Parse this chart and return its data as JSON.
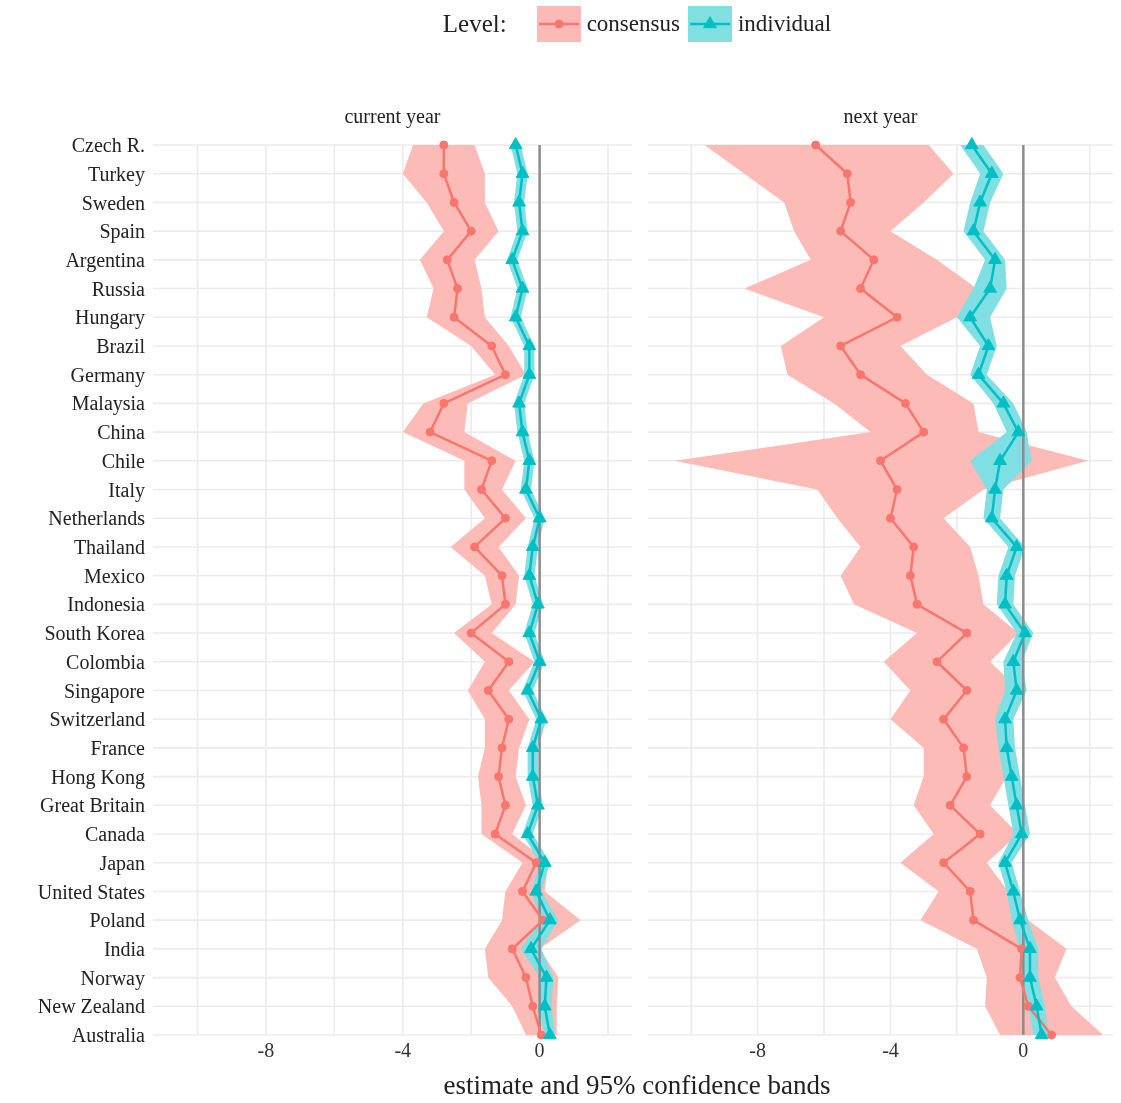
{
  "chart_data": [
    {
      "type": "line",
      "orientation": "horizontal",
      "title": "current year",
      "xlabel": "estimate and 95% confidence bands",
      "legend_title": "Level:",
      "legend": "top",
      "categories": [
        "Czech R.",
        "Turkey",
        "Sweden",
        "Spain",
        "Argentina",
        "Russia",
        "Hungary",
        "Brazil",
        "Germany",
        "Malaysia",
        "China",
        "Chile",
        "Italy",
        "Netherlands",
        "Thailand",
        "Mexico",
        "Indonesia",
        "South Korea",
        "Colombia",
        "Singapore",
        "Switzerland",
        "France",
        "Hong Kong",
        "Great Britain",
        "Canada",
        "Japan",
        "United States",
        "Poland",
        "India",
        "Norway",
        "New Zealand",
        "Australia"
      ],
      "series": [
        {
          "name": "consensus",
          "color": "#f8766d",
          "marker": "circle",
          "values": [
            -2.8,
            -2.8,
            -2.5,
            -2.0,
            -2.7,
            -2.4,
            -2.5,
            -1.4,
            -1.0,
            -2.8,
            -3.2,
            -1.4,
            -1.7,
            -1.0,
            -1.9,
            -1.1,
            -1.0,
            -2.0,
            -0.9,
            -1.5,
            -0.9,
            -1.1,
            -1.2,
            -1.0,
            -1.3,
            -0.1,
            -0.5,
            0.1,
            -0.8,
            -0.4,
            -0.2,
            0.05
          ],
          "lower": [
            -3.7,
            -4.0,
            -3.3,
            -2.8,
            -3.5,
            -3.1,
            -3.3,
            -2.0,
            -1.3,
            -3.4,
            -4.0,
            -2.2,
            -2.2,
            -1.6,
            -2.6,
            -1.6,
            -1.4,
            -2.5,
            -1.6,
            -2.1,
            -1.6,
            -1.6,
            -1.8,
            -1.7,
            -1.7,
            -0.5,
            -1.0,
            -1.1,
            -1.6,
            -1.5,
            -0.8,
            -0.4
          ],
          "upper": [
            -1.9,
            -1.6,
            -1.6,
            -1.2,
            -1.9,
            -1.7,
            -1.6,
            -0.9,
            -0.4,
            -2.1,
            -2.2,
            -0.7,
            -1.1,
            -0.4,
            -1.2,
            -0.6,
            -0.7,
            -1.4,
            -0.15,
            -0.9,
            -0.3,
            -0.6,
            -0.7,
            -0.4,
            -0.8,
            0.25,
            0.15,
            1.2,
            0,
            0.55,
            0.5,
            0.5
          ]
        },
        {
          "name": "individual",
          "color": "#00bfc4",
          "marker": "triangle",
          "values": [
            -0.7,
            -0.5,
            -0.6,
            -0.5,
            -0.8,
            -0.5,
            -0.7,
            -0.3,
            -0.3,
            -0.6,
            -0.5,
            -0.3,
            -0.4,
            0,
            -0.2,
            -0.3,
            -0.05,
            -0.3,
            0,
            -0.35,
            0.05,
            -0.2,
            -0.2,
            -0.05,
            -0.35,
            0.15,
            -0.1,
            0.3,
            -0.25,
            0.2,
            0.15,
            0.3
          ],
          "lower": [
            -0.85,
            -0.65,
            -0.75,
            -0.65,
            -0.95,
            -0.65,
            -0.85,
            -0.45,
            -0.45,
            -0.75,
            -0.65,
            -0.45,
            -0.55,
            -0.15,
            -0.35,
            -0.45,
            -0.2,
            -0.45,
            -0.15,
            -0.5,
            -0.1,
            -0.35,
            -0.35,
            -0.2,
            -0.5,
            0,
            -0.25,
            0.05,
            -0.55,
            0,
            -0.05,
            0.15
          ],
          "upper": [
            -0.55,
            -0.35,
            -0.45,
            -0.35,
            -0.65,
            -0.35,
            -0.55,
            -0.15,
            -0.15,
            -0.45,
            -0.35,
            -0.15,
            -0.25,
            0.15,
            -0.05,
            -0.15,
            0.1,
            -0.15,
            0.15,
            -0.2,
            0.2,
            -0.05,
            -0.05,
            0.1,
            -0.2,
            0.3,
            0.05,
            0.55,
            0.05,
            0.4,
            0.35,
            0.45
          ]
        }
      ],
      "xlim": [
        -11.3,
        2.7
      ],
      "xticks": [
        {
          "value": -10,
          "label": null
        },
        -8,
        {
          "value": -6,
          "label": null
        },
        -4,
        {
          "value": -2,
          "label": null
        },
        0,
        {
          "value": 2,
          "label": null
        }
      ],
      "grid": true,
      "ref_lines": [
        {
          "axis": "x",
          "value": 0,
          "color": "#8c8c8c"
        }
      ]
    },
    {
      "type": "line",
      "orientation": "horizontal",
      "title": "next year",
      "tick_labels": "x",
      "categories": [
        "Czech R.",
        "Turkey",
        "Sweden",
        "Spain",
        "Argentina",
        "Russia",
        "Hungary",
        "Brazil",
        "Germany",
        "Malaysia",
        "China",
        "Chile",
        "Italy",
        "Netherlands",
        "Thailand",
        "Mexico",
        "Indonesia",
        "South Korea",
        "Colombia",
        "Singapore",
        "Switzerland",
        "France",
        "Hong Kong",
        "Great Britain",
        "Canada",
        "Japan",
        "United States",
        "Poland",
        "India",
        "Norway",
        "New Zealand",
        "Australia"
      ],
      "series": [
        {
          "name": "consensus",
          "color": "#f8766d",
          "marker": "circle",
          "values": [
            -6.25,
            -5.3,
            -5.2,
            -5.5,
            -4.5,
            -4.9,
            -3.8,
            -5.5,
            -4.9,
            -3.55,
            -3.0,
            -4.3,
            -3.8,
            -4.0,
            -3.3,
            -3.4,
            -3.2,
            -1.7,
            -2.6,
            -1.7,
            -2.4,
            -1.8,
            -1.7,
            -2.2,
            -1.3,
            -2.4,
            -1.6,
            -1.5,
            -0.05,
            -0.1,
            0.15,
            0.85
          ],
          "lower": [
            -9.6,
            -8.4,
            -7.2,
            -6.9,
            -6.4,
            -8.4,
            -6.0,
            -7.3,
            -7.1,
            -5.7,
            -4.6,
            -10.5,
            -6.2,
            -5.6,
            -4.9,
            -5.5,
            -5.1,
            -3.2,
            -4.2,
            -3.4,
            -4.0,
            -3.0,
            -3.0,
            -3.3,
            -2.7,
            -3.7,
            -2.55,
            -3.1,
            -1.4,
            -1.1,
            -1.15,
            -0.7
          ],
          "upper": [
            -2.85,
            -2.1,
            -3.0,
            -4.0,
            -2.6,
            -1.4,
            -2.0,
            -3.7,
            -2.9,
            -1.5,
            -1.35,
            1.95,
            -1.2,
            -2.4,
            -1.6,
            -1.35,
            -1.2,
            -0.15,
            -1.0,
            -0.1,
            -0.75,
            -0.55,
            -0.5,
            -1.0,
            -0.15,
            -1.1,
            -0.45,
            0.15,
            1.3,
            0.95,
            1.45,
            2.4
          ]
        },
        {
          "name": "individual",
          "color": "#00bfc4",
          "marker": "triangle",
          "values": [
            -1.55,
            -0.95,
            -1.3,
            -1.5,
            -0.85,
            -1.0,
            -1.6,
            -1.05,
            -1.35,
            -0.6,
            -0.15,
            -0.7,
            -0.85,
            -0.95,
            -0.2,
            -0.5,
            -0.55,
            0.05,
            -0.3,
            -0.2,
            -0.55,
            -0.5,
            -0.35,
            -0.2,
            -0.05,
            -0.55,
            -0.3,
            -0.1,
            0.2,
            0.2,
            0.4,
            0.55
          ],
          "lower": [
            -1.9,
            -1.3,
            -1.6,
            -1.8,
            -1.15,
            -1.5,
            -2.0,
            -1.3,
            -1.6,
            -0.9,
            -0.5,
            -1.6,
            -1.1,
            -1.2,
            -0.45,
            -0.75,
            -0.8,
            -0.2,
            -0.6,
            -0.55,
            -0.85,
            -0.75,
            -0.6,
            -0.45,
            -0.3,
            -0.75,
            -0.5,
            -0.35,
            -0.1,
            -0.05,
            0.15,
            0.3
          ],
          "upper": [
            -1.2,
            -0.6,
            -1.0,
            -1.2,
            -0.55,
            -0.5,
            -1.0,
            -0.8,
            -1.1,
            -0.3,
            0.1,
            0.25,
            -0.6,
            -0.7,
            0.05,
            -0.25,
            -0.3,
            0.3,
            -0.05,
            0.1,
            -0.3,
            -0.25,
            -0.1,
            0.05,
            0.2,
            -0.35,
            -0.1,
            0.15,
            0.45,
            0.45,
            0.65,
            0.75
          ]
        }
      ],
      "xlim": [
        -11.3,
        2.7
      ],
      "xticks": [
        {
          "value": -10,
          "label": null
        },
        -8,
        {
          "value": -6,
          "label": null
        },
        -4,
        {
          "value": -2,
          "label": null
        },
        0,
        {
          "value": 2,
          "label": null
        }
      ],
      "grid": true,
      "ref_lines": [
        {
          "axis": "x",
          "value": 0,
          "color": "#8c8c8c"
        }
      ]
    }
  ]
}
